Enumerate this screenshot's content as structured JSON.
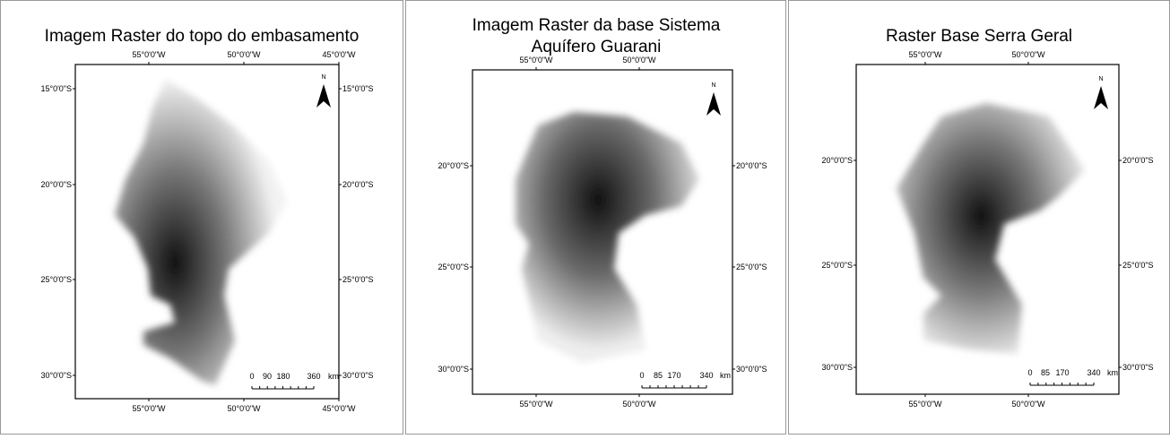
{
  "panels": [
    {
      "title": [
        "Imagem Raster do topo do embasamento"
      ],
      "north": "N",
      "top_labels": [
        "55°0'0\"W",
        "50°0'0\"W",
        "45°0'0\"W"
      ],
      "bottom_labels": [
        "55°0'0\"W",
        "50°0'0\"W",
        "45°0'0\"W"
      ],
      "left_labels": [
        "15°0'0\"S",
        "20°0'0\"S",
        "25°0'0\"S",
        "30°0'0\"S"
      ],
      "right_labels": [
        "15°0'0\"S",
        "20°0'0\"S",
        "25°0'0\"S",
        "30°0'0\"S"
      ],
      "scale_labels": [
        "0",
        "90",
        "180",
        "360",
        "km"
      ]
    },
    {
      "title": [
        "Imagem Raster da base Sistema",
        "Aquífero Guarani"
      ],
      "north": "N",
      "top_labels": [
        "55°0'0\"W",
        "50°0'0\"W"
      ],
      "bottom_labels": [
        "55°0'0\"W",
        "50°0'0\"W"
      ],
      "left_labels": [
        "20°0'0\"S",
        "25°0'0\"S",
        "30°0'0\"S"
      ],
      "right_labels": [
        "20°0'0\"S",
        "25°0'0\"S",
        "30°0'0\"S"
      ],
      "scale_labels": [
        "0",
        "85",
        "170",
        "340",
        "km"
      ]
    },
    {
      "title": [
        "Raster Base Serra Geral"
      ],
      "north": "N",
      "top_labels": [
        "55°0'0\"W",
        "50°0'0\"W"
      ],
      "bottom_labels": [
        "55°0'0\"W",
        "50°0'0\"W"
      ],
      "left_labels": [
        "20°0'0\"S",
        "25°0'0\"S",
        "30°0'0\"S"
      ],
      "right_labels": [
        "20°0'0\"S",
        "25°0'0\"S",
        "30°0'0\"S"
      ],
      "scale_labels": [
        "0",
        "85",
        "170",
        "340",
        "km"
      ]
    }
  ]
}
